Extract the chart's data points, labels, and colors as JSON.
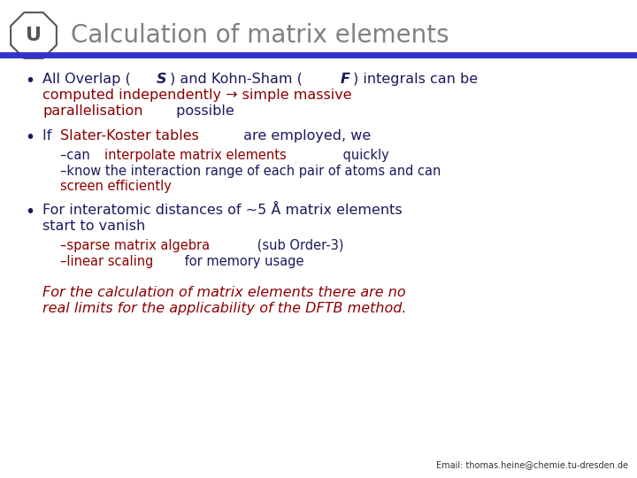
{
  "title": "Calculation of matrix elements",
  "title_color": "#808080",
  "header_line_color": "#3333cc",
  "background_color": "#ffffff",
  "dark_blue": "#1a1a5e",
  "dark_red": "#8b0000",
  "email": "Email: thomas.heine@chemie.tu-dresden.de",
  "bullet1_parts": [
    {
      "text": "All Overlap (",
      "color": "#1a1a5e",
      "bold": false,
      "italic": false
    },
    {
      "text": "S",
      "color": "#1a1a5e",
      "bold": true,
      "italic": true
    },
    {
      "text": ") and Kohn-Sham (",
      "color": "#1a1a5e",
      "bold": false,
      "italic": false
    },
    {
      "text": "F",
      "color": "#1a1a5e",
      "bold": true,
      "italic": true
    },
    {
      "text": ") integrals can be",
      "color": "#1a1a5e",
      "bold": false,
      "italic": false
    }
  ],
  "bullet1_line2_parts": [
    {
      "text": "computed independently → simple massive",
      "color": "#8b0000",
      "bold": false,
      "italic": false
    }
  ],
  "bullet1_line3_parts": [
    {
      "text": "parallelisation",
      "color": "#8b0000",
      "bold": false,
      "italic": false
    },
    {
      "text": " possible",
      "color": "#1a1a5e",
      "bold": false,
      "italic": false
    }
  ],
  "bullet2_parts": [
    {
      "text": "If ",
      "color": "#1a1a5e",
      "bold": false,
      "italic": false
    },
    {
      "text": "Slater-Koster tables",
      "color": "#8b0000",
      "bold": false,
      "italic": false
    },
    {
      "text": " are employed, we",
      "color": "#1a1a5e",
      "bold": false,
      "italic": false
    }
  ],
  "sub1_parts": [
    {
      "text": "–can ",
      "color": "#1a1a5e",
      "bold": false,
      "italic": false
    },
    {
      "text": "interpolate matrix elements",
      "color": "#8b0000",
      "bold": false,
      "italic": false
    },
    {
      "text": " quickly",
      "color": "#1a1a5e",
      "bold": false,
      "italic": false
    }
  ],
  "sub2_line1_parts": [
    {
      "text": "–know the interaction range of each pair of atoms and can",
      "color": "#1a1a5e",
      "bold": false,
      "italic": false
    }
  ],
  "sub2_line2_parts": [
    {
      "text": "screen efficiently",
      "color": "#8b0000",
      "bold": false,
      "italic": false
    }
  ],
  "bullet3_parts": [
    {
      "text": "For interatomic distances of ~5 Å matrix elements",
      "color": "#1a1a5e",
      "bold": false,
      "italic": false
    }
  ],
  "bullet3_line2_parts": [
    {
      "text": "start to vanish",
      "color": "#1a1a5e",
      "bold": false,
      "italic": false
    }
  ],
  "sub3_parts": [
    {
      "text": "–sparse matrix algebra",
      "color": "#8b0000",
      "bold": false,
      "italic": false
    },
    {
      "text": " (sub Order-3)",
      "color": "#1a1a5e",
      "bold": false,
      "italic": false
    }
  ],
  "sub4_parts": [
    {
      "text": "–linear scaling",
      "color": "#8b0000",
      "bold": false,
      "italic": false
    },
    {
      "text": " for memory usage",
      "color": "#1a1a5e",
      "bold": false,
      "italic": false
    }
  ],
  "footer_italic_line1": "For the calculation of matrix elements there are no",
  "footer_italic_line2": "real limits for the applicability of the DFTB method.",
  "footer_color": "#8b0000"
}
